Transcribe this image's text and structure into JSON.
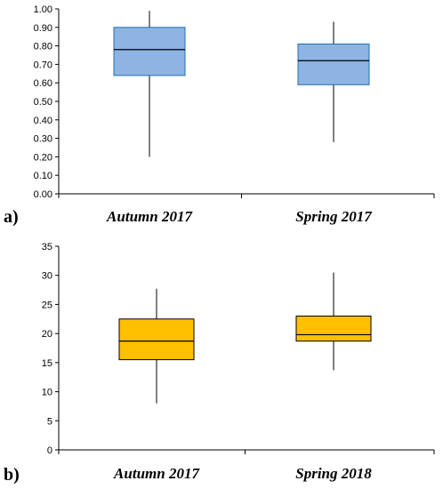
{
  "chart_data": [
    {
      "type": "box",
      "panel_label": "a)",
      "categories": [
        "Autumn 2017",
        "Spring 2017"
      ],
      "ylim": [
        0,
        1
      ],
      "yticks": [
        "0.00",
        "0.10",
        "0.20",
        "0.30",
        "0.40",
        "0.50",
        "0.60",
        "0.70",
        "0.80",
        "0.90",
        "1.00"
      ],
      "boxes": [
        {
          "min": 0.2,
          "q1": 0.64,
          "median": 0.78,
          "q3": 0.9,
          "max": 0.99
        },
        {
          "min": 0.28,
          "q1": 0.59,
          "median": 0.72,
          "q3": 0.81,
          "max": 0.93
        }
      ],
      "box_fill": "#8db4e2",
      "box_stroke": "#1f6fb6",
      "grid": false
    },
    {
      "type": "box",
      "panel_label": "b)",
      "categories": [
        "Autumn 2017",
        "Spring 2018"
      ],
      "ylim": [
        0,
        35
      ],
      "yticks": [
        "0",
        "5",
        "10",
        "15",
        "20",
        "25",
        "30",
        "35"
      ],
      "boxes": [
        {
          "min": 8.0,
          "q1": 15.5,
          "median": 18.7,
          "q3": 22.5,
          "max": 27.7
        },
        {
          "min": 13.7,
          "q1": 18.7,
          "median": 19.8,
          "q3": 23.0,
          "max": 30.5
        }
      ],
      "box_fill": "#ffc000",
      "box_stroke": "#000000",
      "grid": false
    }
  ]
}
